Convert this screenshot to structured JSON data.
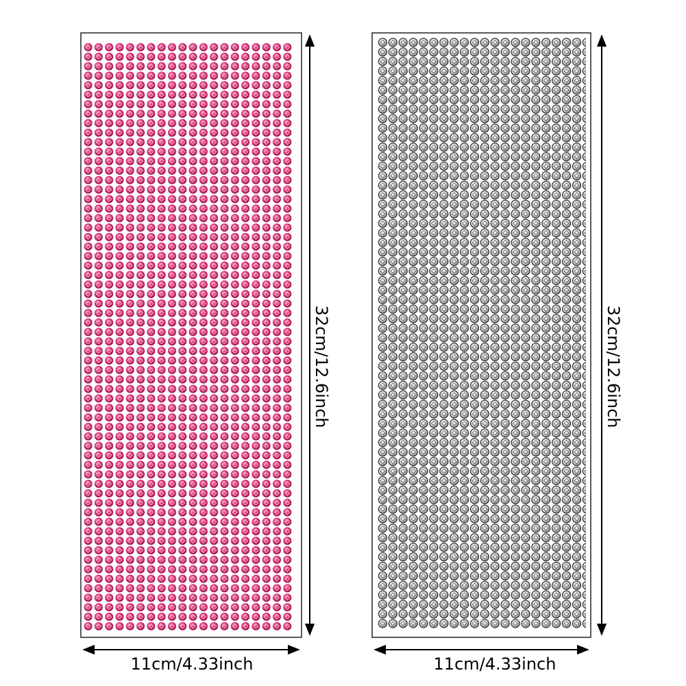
{
  "panels": [
    {
      "height_label": "32cm/12.6inch",
      "width_label": "11cm/4.33inch"
    },
    {
      "height_label": "32cm/12.6inch",
      "width_label": "11cm/4.33inch"
    }
  ]
}
